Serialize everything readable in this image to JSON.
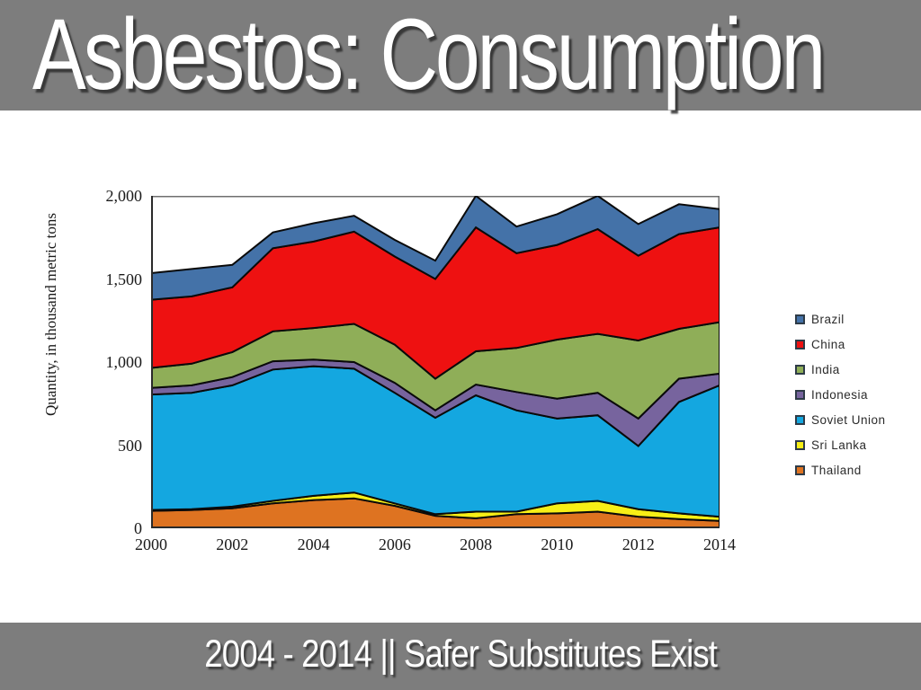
{
  "slide": {
    "title": "Asbestos: Consumption",
    "caption": "2004 - 2014 || Safer Substitutes Exist",
    "band_color": "#7D7D7D",
    "text_color": "#FFFFFF"
  },
  "chart_data": {
    "type": "area",
    "stacked": true,
    "title": "",
    "xlabel": "",
    "ylabel": "Quantity, in thousand metric tons",
    "units": "thousand metric tons",
    "x": [
      2000,
      2001,
      2002,
      2003,
      2004,
      2005,
      2006,
      2007,
      2008,
      2009,
      2010,
      2011,
      2012,
      2013,
      2014
    ],
    "x_tick_labels": [
      "2000",
      "2002",
      "2004",
      "2006",
      "2008",
      "2010",
      "2012",
      "2014"
    ],
    "x_tick_years": [
      2000,
      2002,
      2004,
      2006,
      2008,
      2010,
      2012,
      2014
    ],
    "y_ticks": [
      0,
      500,
      1000,
      1500,
      2000
    ],
    "y_tick_labels": [
      "0",
      "500",
      "1,000",
      "1,500",
      "2,000"
    ],
    "ylim": [
      0,
      2000
    ],
    "xlim": [
      2000,
      2014
    ],
    "grid": false,
    "legend_position": "right",
    "area_stroke_color": "#0a0a0a",
    "series_bottom_to_top": [
      {
        "name": "Thailand",
        "color": "#DE7321",
        "values": [
          105,
          110,
          120,
          150,
          170,
          180,
          135,
          75,
          60,
          85,
          90,
          100,
          70,
          55,
          45
        ]
      },
      {
        "name": "Sri Lanka",
        "color": "#F7EF16",
        "values": [
          5,
          5,
          10,
          15,
          25,
          35,
          15,
          10,
          40,
          15,
          60,
          65,
          45,
          35,
          25
        ]
      },
      {
        "name": "Soviet Union",
        "color": "#14A7E0",
        "values": [
          695,
          700,
          730,
          790,
          780,
          745,
          665,
          580,
          700,
          610,
          510,
          515,
          380,
          670,
          790
        ]
      },
      {
        "name": "Indonesia",
        "color": "#77649E",
        "values": [
          40,
          45,
          50,
          50,
          40,
          40,
          60,
          45,
          65,
          110,
          120,
          135,
          165,
          140,
          70
        ]
      },
      {
        "name": "India",
        "color": "#8FAE58",
        "values": [
          120,
          130,
          150,
          180,
          190,
          230,
          230,
          190,
          200,
          265,
          355,
          355,
          470,
          300,
          310
        ]
      },
      {
        "name": "China",
        "color": "#EE1111",
        "values": [
          410,
          405,
          390,
          500,
          520,
          555,
          530,
          600,
          745,
          570,
          570,
          630,
          510,
          570,
          570
        ]
      },
      {
        "name": "Brazil",
        "color": "#4472A8",
        "values": [
          160,
          165,
          135,
          95,
          110,
          95,
          100,
          110,
          190,
          160,
          185,
          200,
          190,
          180,
          110
        ]
      }
    ],
    "legend_order": [
      "Brazil",
      "China",
      "India",
      "Indonesia",
      "Soviet Union",
      "Sri Lanka",
      "Thailand"
    ]
  }
}
